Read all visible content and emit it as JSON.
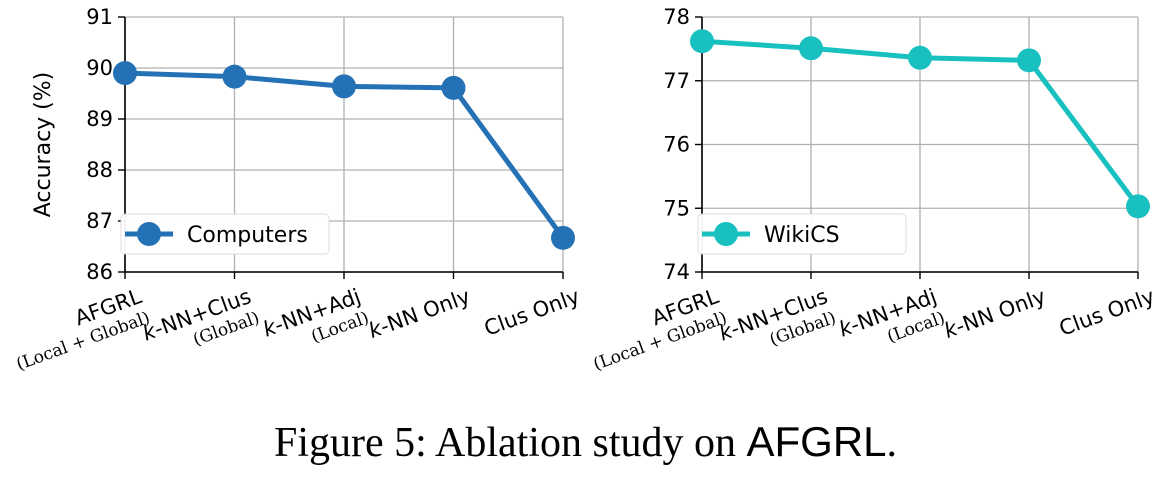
{
  "chart_data": [
    {
      "type": "line",
      "ylabel": "Accuracy (%)",
      "ylim": [
        86,
        91
      ],
      "yticks": [
        "86",
        "87",
        "88",
        "89",
        "90",
        "91"
      ],
      "categories": [
        {
          "label": "AFGRL",
          "sub": "(Local + Global)"
        },
        {
          "label": "k-NN+Clus",
          "sub": "(Global)"
        },
        {
          "label": "k-NN+Adj",
          "sub": "(Local)"
        },
        {
          "label": "k-NN Only",
          "sub": ""
        },
        {
          "label": "Clus Only",
          "sub": ""
        }
      ],
      "series": [
        {
          "name": "Computers",
          "color": "#2471b5",
          "values": [
            89.9,
            89.83,
            89.64,
            89.61,
            86.67
          ]
        }
      ],
      "grid": true,
      "legend": "lower-left"
    },
    {
      "type": "line",
      "ylabel": "",
      "ylim": [
        74,
        78
      ],
      "yticks": [
        "74",
        "75",
        "76",
        "77",
        "78"
      ],
      "categories": [
        {
          "label": "AFGRL",
          "sub": "(Local + Global)"
        },
        {
          "label": "k-NN+Clus",
          "sub": "(Global)"
        },
        {
          "label": "k-NN+Adj",
          "sub": "(Local)"
        },
        {
          "label": "k-NN Only",
          "sub": ""
        },
        {
          "label": "Clus Only",
          "sub": ""
        }
      ],
      "series": [
        {
          "name": "WikiCS",
          "color": "#19c0c0",
          "values": [
            77.62,
            77.51,
            77.36,
            77.32,
            75.03
          ]
        }
      ],
      "grid": true,
      "legend": "lower-left"
    }
  ],
  "caption": {
    "prefix": "Figure 5: Ablation study on ",
    "name": "AFGRL",
    "suffix": "."
  }
}
